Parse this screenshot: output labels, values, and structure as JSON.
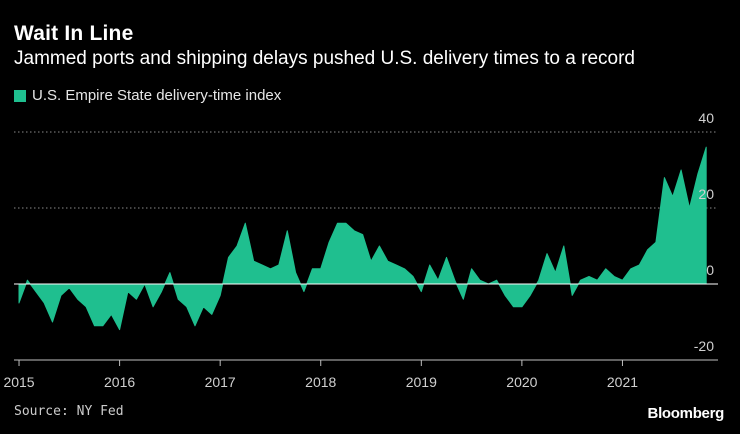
{
  "header": {
    "title": "Wait In Line",
    "subtitle": "Jammed ports and shipping delays pushed U.S. delivery times to a record"
  },
  "footer": {
    "source": "Source: NY Fed",
    "brand": "Bloomberg"
  },
  "colors": {
    "background": "#000000",
    "series": "#1fbf8f",
    "grid": "#8a8a8a",
    "axis": "#bfbfbf"
  },
  "chart_data": {
    "type": "area",
    "title": "Wait In Line",
    "subtitle": "Jammed ports and shipping delays pushed U.S. delivery times to a record",
    "xlabel": "",
    "ylabel": "",
    "xlim": [
      2014.95,
      2021.95
    ],
    "ylim": [
      -20,
      40
    ],
    "yticks": [
      40,
      20,
      0,
      -20
    ],
    "xticks": [
      2015,
      2016,
      2017,
      2018,
      2019,
      2020,
      2021
    ],
    "grid": "horizontal dotted",
    "legend": "top-left",
    "series": [
      {
        "name": "U.S. Empire State delivery-time index",
        "x": [
          2015.0,
          2015.083,
          2015.167,
          2015.25,
          2015.333,
          2015.417,
          2015.5,
          2015.583,
          2015.667,
          2015.75,
          2015.833,
          2015.917,
          2016.0,
          2016.083,
          2016.167,
          2016.25,
          2016.333,
          2016.417,
          2016.5,
          2016.583,
          2016.667,
          2016.75,
          2016.833,
          2016.917,
          2017.0,
          2017.083,
          2017.167,
          2017.25,
          2017.333,
          2017.417,
          2017.5,
          2017.583,
          2017.667,
          2017.75,
          2017.833,
          2017.917,
          2018.0,
          2018.083,
          2018.167,
          2018.25,
          2018.333,
          2018.417,
          2018.5,
          2018.583,
          2018.667,
          2018.75,
          2018.833,
          2018.917,
          2019.0,
          2019.083,
          2019.167,
          2019.25,
          2019.333,
          2019.417,
          2019.5,
          2019.583,
          2019.667,
          2019.75,
          2019.833,
          2019.917,
          2020.0,
          2020.083,
          2020.167,
          2020.25,
          2020.333,
          2020.417,
          2020.5,
          2020.583,
          2020.667,
          2020.75,
          2020.833,
          2020.917,
          2021.0,
          2021.083,
          2021.167,
          2021.25,
          2021.333,
          2021.417,
          2021.5,
          2021.583,
          2021.667,
          2021.75,
          2021.833
        ],
        "values": [
          -5,
          1,
          -2,
          -5,
          -10,
          -3,
          -1,
          -4,
          -6,
          -11,
          -11,
          -8,
          -12,
          -2,
          -4,
          0,
          -6,
          -2,
          3,
          -4,
          -6,
          -11,
          -6,
          -8,
          -3,
          7,
          10,
          16,
          6,
          5,
          4,
          5,
          14,
          3,
          -2,
          4,
          4,
          11,
          16,
          16,
          14,
          13,
          6,
          10,
          6,
          5,
          4,
          2,
          -2,
          5,
          1,
          7,
          1,
          -4,
          4,
          1,
          0,
          1,
          -3,
          -6,
          -6,
          -3,
          1,
          8,
          3,
          10,
          -3,
          1,
          2,
          1,
          4,
          2,
          1,
          4,
          5,
          9,
          11,
          28,
          23,
          30,
          20,
          29,
          36
        ]
      }
    ]
  }
}
